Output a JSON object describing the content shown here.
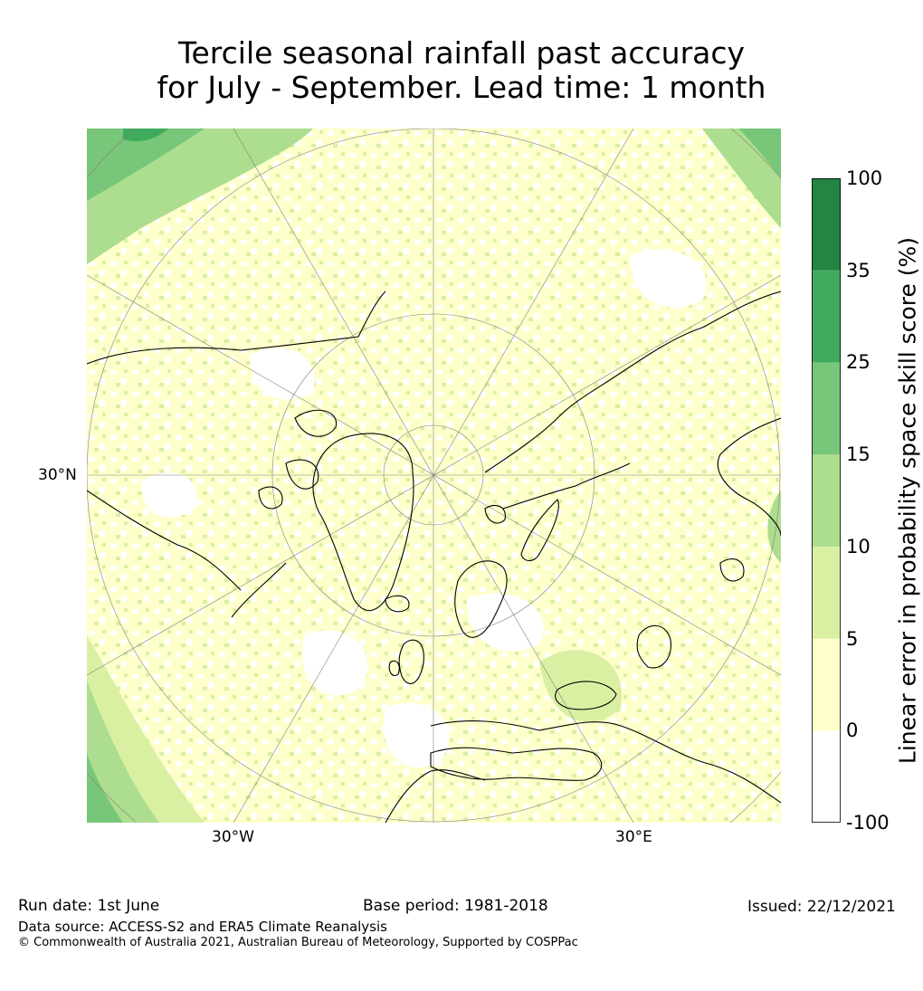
{
  "title": {
    "line1": "Tercile seasonal rainfall past accuracy",
    "line2": "for July - September. Lead time: 1 month"
  },
  "map": {
    "projection": "north-polar-stereographic",
    "lat_label": "30°N",
    "lon_labels": {
      "west": "30°W",
      "east": "30°E"
    },
    "background_color": "#ffffff",
    "coastline_color": "#000000",
    "gridline_color": "#808080"
  },
  "colorbar": {
    "title": "Linear error in probability space skill score (%)",
    "ticks": [
      "100",
      "35",
      "25",
      "15",
      "10",
      "5",
      "0",
      "-100"
    ],
    "bins": [
      {
        "from": "-100",
        "to": "0",
        "color": "#ffffff"
      },
      {
        "from": "0",
        "to": "5",
        "color": "#ffffcc"
      },
      {
        "from": "5",
        "to": "10",
        "color": "#d9f0a3"
      },
      {
        "from": "10",
        "to": "15",
        "color": "#addd8e"
      },
      {
        "from": "15",
        "to": "25",
        "color": "#78c679"
      },
      {
        "from": "25",
        "to": "35",
        "color": "#41ab5d"
      },
      {
        "from": "35",
        "to": "100",
        "color": "#238443"
      }
    ]
  },
  "footer": {
    "run_date": "Run date: 1st June",
    "base_period": "Base period: 1981-2018",
    "issued": "Issued: 22/12/2021",
    "data_source": "Data source: ACCESS-S2 and ERA5 Climate Reanalysis",
    "copyright": "© Commonwealth of Australia 2021, Australian Bureau of Meteorology, Supported by COSPPac"
  }
}
